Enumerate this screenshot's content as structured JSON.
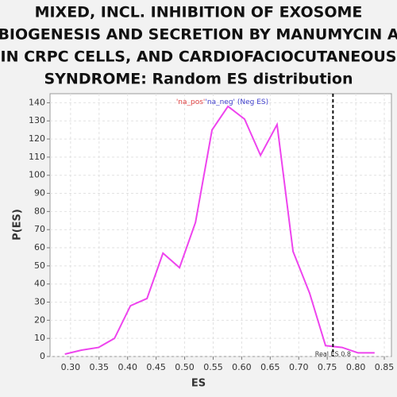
{
  "chart_data": {
    "type": "line",
    "title_lines": [
      "MIXED, INCL. INHIBITION OF EXOSOME",
      "BIOGENESIS AND SECRETION BY MANUMYCIN A",
      "IN CRPC CELLS, AND CARDIOFACIOCUTANEOUS",
      "SYNDROME: Random ES distribution"
    ],
    "x_label": "ES",
    "y_label": "P(ES)",
    "x": [
      0.29,
      0.319,
      0.349,
      0.377,
      0.405,
      0.434,
      0.462,
      0.491,
      0.519,
      0.548,
      0.576,
      0.605,
      0.633,
      0.662,
      0.69,
      0.719,
      0.747,
      0.776,
      0.804,
      0.833
    ],
    "series": [
      {
        "name": "'na_pos'",
        "color": "#e04040",
        "values": null
      },
      {
        "name": "'na_neg' (Neg ES)",
        "color": "#ee44ee",
        "legend_color": "#4040cc",
        "values": [
          1.3,
          3.5,
          5,
          10,
          28,
          32,
          57,
          49,
          74,
          125,
          138,
          131,
          111,
          128,
          58,
          35,
          6,
          5,
          2,
          2
        ]
      }
    ],
    "xlim": [
      0.264,
      0.8625
    ],
    "xticks": [
      {
        "value": 0.3,
        "label": "0.30"
      },
      0.35,
      {
        "value": 0.4,
        "label": "0.40"
      },
      0.45,
      {
        "value": 0.5,
        "label": "0.50"
      },
      0.55,
      {
        "value": 0.6,
        "label": "0.60"
      },
      0.65,
      {
        "value": 0.7,
        "label": "0.70"
      },
      0.75,
      {
        "value": 0.8,
        "label": "0.80"
      },
      0.85
    ],
    "ylim": [
      0,
      145
    ],
    "yticks": [
      0,
      10,
      20,
      30,
      40,
      50,
      60,
      70,
      80,
      90,
      100,
      110,
      120,
      130,
      140
    ],
    "grid": true,
    "real_es": {
      "value": 0.76,
      "label": "Real ES 0.8"
    }
  }
}
